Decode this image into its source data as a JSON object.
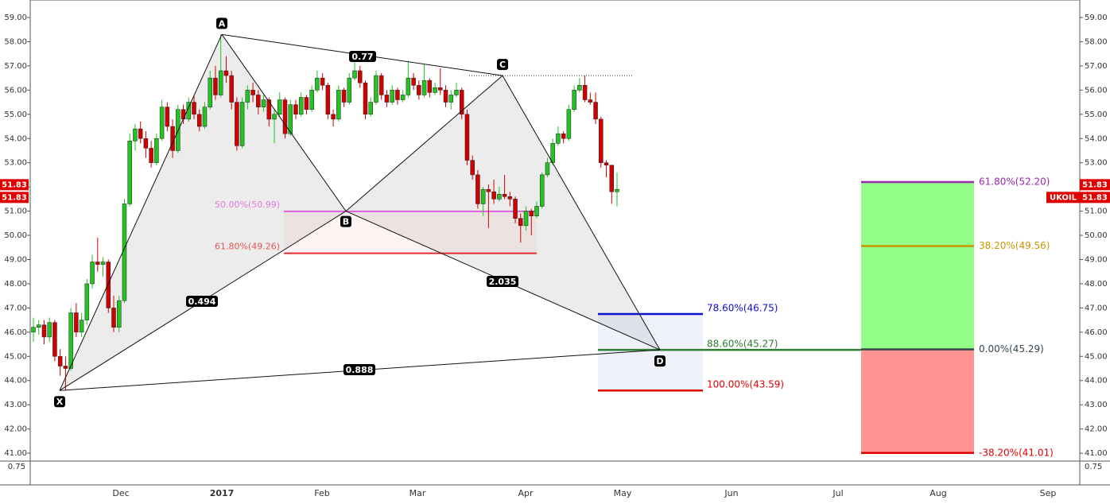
{
  "chart_data": {
    "type": "candlestick",
    "symbol": "UKOIL",
    "last_price": 51.83,
    "ylim": [
      40.74,
      59.46
    ],
    "yticks": [
      {
        "value": 41,
        "label": "41.00"
      },
      {
        "value": 42,
        "label": "42.00"
      },
      {
        "value": 43,
        "label": "43.00"
      },
      {
        "value": 44,
        "label": "44.00"
      },
      {
        "value": 45,
        "label": "45.00"
      },
      {
        "value": 46,
        "label": "46.00"
      },
      {
        "value": 47,
        "label": "47.00"
      },
      {
        "value": 48,
        "label": "48.00"
      },
      {
        "value": 49,
        "label": "49.00"
      },
      {
        "value": 50,
        "label": "50.00"
      },
      {
        "value": 51,
        "label": "51.00"
      },
      {
        "value": 52,
        "label": "52.00"
      },
      {
        "value": 53,
        "label": "53.00"
      },
      {
        "value": 54,
        "label": "54.00"
      },
      {
        "value": 55,
        "label": "55.00"
      },
      {
        "value": 56,
        "label": "56.00"
      },
      {
        "value": 57,
        "label": "57.00"
      },
      {
        "value": 58,
        "label": "58.00"
      },
      {
        "value": 59,
        "label": "59.00"
      }
    ],
    "x_labels": [
      "Dec",
      "2017",
      "Feb",
      "Mar",
      "Apr",
      "May",
      "Jun",
      "Jul",
      "Aug",
      "Sep"
    ],
    "lower_panel_label": "0.75",
    "up_color": "#22c322",
    "down_color": "#d10000",
    "candles": [
      [
        46.0,
        46.6,
        45.6,
        46.2
      ],
      [
        46.2,
        46.5,
        45.9,
        46.3
      ],
      [
        46.3,
        46.5,
        45.5,
        45.8
      ],
      [
        45.8,
        46.6,
        45.6,
        46.4
      ],
      [
        46.4,
        46.5,
        44.8,
        45.0
      ],
      [
        45.0,
        45.3,
        44.2,
        44.6
      ],
      [
        44.6,
        45.0,
        43.6,
        44.5
      ],
      [
        44.5,
        47.0,
        44.4,
        46.8
      ],
      [
        46.8,
        47.2,
        45.8,
        46.0
      ],
      [
        46.0,
        46.8,
        45.8,
        46.5
      ],
      [
        46.5,
        48.2,
        46.3,
        48.0
      ],
      [
        48.0,
        49.2,
        47.8,
        48.9
      ],
      [
        48.9,
        49.9,
        48.5,
        48.8
      ],
      [
        48.8,
        49.1,
        48.3,
        48.9
      ],
      [
        48.9,
        49.0,
        46.8,
        47.0
      ],
      [
        47.0,
        47.5,
        46.0,
        46.2
      ],
      [
        46.2,
        47.5,
        46.0,
        47.3
      ],
      [
        47.3,
        51.5,
        47.2,
        51.3
      ],
      [
        51.3,
        54.2,
        51.2,
        53.9
      ],
      [
        53.9,
        54.6,
        53.5,
        54.4
      ],
      [
        54.4,
        54.7,
        53.8,
        54.0
      ],
      [
        54.0,
        54.3,
        53.2,
        53.6
      ],
      [
        53.6,
        53.9,
        52.8,
        53.0
      ],
      [
        53.0,
        54.2,
        52.9,
        54.0
      ],
      [
        54.0,
        55.6,
        53.9,
        55.3
      ],
      [
        55.3,
        55.5,
        54.3,
        54.5
      ],
      [
        54.5,
        54.8,
        53.2,
        53.5
      ],
      [
        53.5,
        55.4,
        53.4,
        55.2
      ],
      [
        55.2,
        55.4,
        54.6,
        54.8
      ],
      [
        54.8,
        55.7,
        54.7,
        55.5
      ],
      [
        55.5,
        55.8,
        54.8,
        55.0
      ],
      [
        55.0,
        55.2,
        54.3,
        54.5
      ],
      [
        54.5,
        55.5,
        54.4,
        55.3
      ],
      [
        55.3,
        56.8,
        55.2,
        56.5
      ],
      [
        56.5,
        57.0,
        55.6,
        55.8
      ],
      [
        55.8,
        58.3,
        55.7,
        56.8
      ],
      [
        56.8,
        57.4,
        56.3,
        56.6
      ],
      [
        56.6,
        56.8,
        55.2,
        55.5
      ],
      [
        55.5,
        55.7,
        53.5,
        53.7
      ],
      [
        53.7,
        55.7,
        53.6,
        55.5
      ],
      [
        55.5,
        56.2,
        55.2,
        56.0
      ],
      [
        56.0,
        56.3,
        55.5,
        55.8
      ],
      [
        55.8,
        56.0,
        55.0,
        55.3
      ],
      [
        55.3,
        55.8,
        55.1,
        55.6
      ],
      [
        55.6,
        55.7,
        54.5,
        54.8
      ],
      [
        54.8,
        55.2,
        53.8,
        55.0
      ],
      [
        55.0,
        55.9,
        54.9,
        55.6
      ],
      [
        55.6,
        55.7,
        54.0,
        54.2
      ],
      [
        54.2,
        55.6,
        54.1,
        55.4
      ],
      [
        55.4,
        55.6,
        54.8,
        55.0
      ],
      [
        55.0,
        55.9,
        54.9,
        55.7
      ],
      [
        55.7,
        55.8,
        55.0,
        55.2
      ],
      [
        55.2,
        56.2,
        55.1,
        56.0
      ],
      [
        56.0,
        56.8,
        55.9,
        56.5
      ],
      [
        56.5,
        56.7,
        56.0,
        56.2
      ],
      [
        56.2,
        56.3,
        54.8,
        55.0
      ],
      [
        55.0,
        55.2,
        54.5,
        54.8
      ],
      [
        54.8,
        56.2,
        54.7,
        56.0
      ],
      [
        56.0,
        56.1,
        55.3,
        55.5
      ],
      [
        55.5,
        56.7,
        55.4,
        56.5
      ],
      [
        56.5,
        57.4,
        56.4,
        56.8
      ],
      [
        56.8,
        57.0,
        56.1,
        56.3
      ],
      [
        56.3,
        56.4,
        54.8,
        55.0
      ],
      [
        55.0,
        55.7,
        54.9,
        55.5
      ],
      [
        55.5,
        56.8,
        55.4,
        56.6
      ],
      [
        56.6,
        56.7,
        55.6,
        55.8
      ],
      [
        55.8,
        56.0,
        55.3,
        55.5
      ],
      [
        55.5,
        56.2,
        55.4,
        56.0
      ],
      [
        56.0,
        56.1,
        55.4,
        55.6
      ],
      [
        55.6,
        56.0,
        55.5,
        55.8
      ],
      [
        55.8,
        57.2,
        55.7,
        56.5
      ],
      [
        56.5,
        56.7,
        56.0,
        56.2
      ],
      [
        56.2,
        56.4,
        55.6,
        55.8
      ],
      [
        55.8,
        57.1,
        55.7,
        56.4
      ],
      [
        56.4,
        56.5,
        55.7,
        55.9
      ],
      [
        55.9,
        56.3,
        55.8,
        56.1
      ],
      [
        56.1,
        56.9,
        55.8,
        56.0
      ],
      [
        56.0,
        56.2,
        55.3,
        55.5
      ],
      [
        55.5,
        56.0,
        55.2,
        55.8
      ],
      [
        55.8,
        56.3,
        55.7,
        56.0
      ],
      [
        56.0,
        56.1,
        54.8,
        55.0
      ],
      [
        55.0,
        55.2,
        52.9,
        53.1
      ],
      [
        53.1,
        53.3,
        52.3,
        52.5
      ],
      [
        52.5,
        52.7,
        51.1,
        51.3
      ],
      [
        51.3,
        52.0,
        50.8,
        51.9
      ],
      [
        51.9,
        52.1,
        50.3,
        51.8
      ],
      [
        51.8,
        52.3,
        51.3,
        51.5
      ],
      [
        51.5,
        52.0,
        51.4,
        51.7
      ],
      [
        51.7,
        52.5,
        51.5,
        51.6
      ],
      [
        51.6,
        51.8,
        51.2,
        51.5
      ],
      [
        51.5,
        51.6,
        50.5,
        50.7
      ],
      [
        50.7,
        50.9,
        49.7,
        50.4
      ],
      [
        50.4,
        51.2,
        50.2,
        51.0
      ],
      [
        51.0,
        51.1,
        50.0,
        50.8
      ],
      [
        50.8,
        51.4,
        50.7,
        51.2
      ],
      [
        51.2,
        52.6,
        51.1,
        52.5
      ],
      [
        52.5,
        53.2,
        52.4,
        53.0
      ],
      [
        53.0,
        54.0,
        52.9,
        53.8
      ],
      [
        53.8,
        54.5,
        53.7,
        54.2
      ],
      [
        54.2,
        54.3,
        53.8,
        54.0
      ],
      [
        54.0,
        55.4,
        53.9,
        55.2
      ],
      [
        55.2,
        56.2,
        55.1,
        56.0
      ],
      [
        56.0,
        56.5,
        55.9,
        56.2
      ],
      [
        56.2,
        56.6,
        55.5,
        55.6
      ],
      [
        55.6,
        55.9,
        55.4,
        55.5
      ],
      [
        55.5,
        55.9,
        54.6,
        54.8
      ],
      [
        54.8,
        54.9,
        52.8,
        53.0
      ],
      [
        53.0,
        53.1,
        52.4,
        52.9
      ],
      [
        52.9,
        52.9,
        51.3,
        51.8
      ],
      [
        51.8,
        52.6,
        51.2,
        51.9
      ]
    ],
    "pattern": {
      "points": [
        {
          "label": "X",
          "price": 43.59
        },
        {
          "label": "A",
          "price": 58.3
        },
        {
          "label": "B",
          "price": 51.0
        },
        {
          "label": "C",
          "price": 56.6
        },
        {
          "label": "D",
          "price": 45.27
        }
      ],
      "ratios": [
        "0.77",
        "0.494",
        "2.035",
        "0.888"
      ]
    },
    "retracement": [
      {
        "value": 50.99,
        "label": "50.00%(50.99)",
        "color": "#e060e0"
      },
      {
        "value": 49.26,
        "label": "61.80%(49.26)",
        "color": "#e03030"
      }
    ],
    "prz": [
      {
        "value": 46.75,
        "label": "78.60%(46.75)",
        "color": "#1010d0"
      },
      {
        "value": 45.27,
        "label": "88.60%(45.27)",
        "color": "#2e7d32"
      },
      {
        "value": 43.59,
        "label": "100.00%(43.59)",
        "color": "#e00000"
      }
    ],
    "position": [
      {
        "value": 52.2,
        "label": "61.80%(52.20)",
        "color": "#9c27b0"
      },
      {
        "value": 49.56,
        "label": "38.20%(49.56)",
        "color": "#c89600"
      },
      {
        "value": 45.29,
        "label": "0.00%(45.29)",
        "color": "#37474f"
      },
      {
        "value": 41.01,
        "label": "-38.20%(41.01)",
        "color": "#e00000"
      }
    ]
  }
}
